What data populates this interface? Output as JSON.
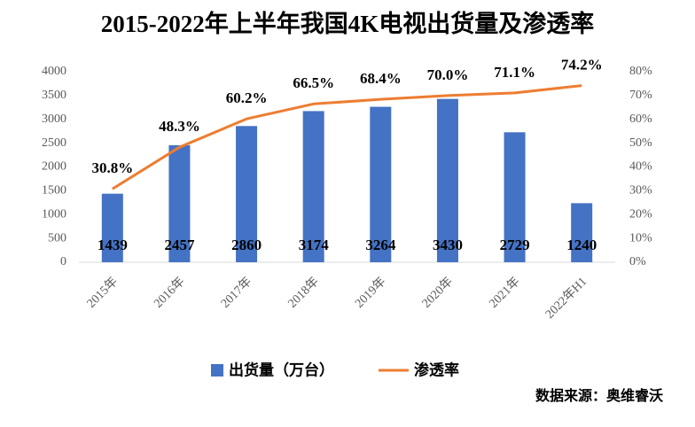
{
  "chart_data": {
    "type": "combo",
    "title": "2015-2022年上半年我国4K电视出货量及渗透率",
    "source": "数据来源：奥维睿沃",
    "categories": [
      "2015年",
      "2016年",
      "2017年",
      "2018年",
      "2019年",
      "2020年",
      "2021年",
      "2022年H1"
    ],
    "series": [
      {
        "name": "出货量（万台）",
        "type": "bar",
        "color": "#4472c4",
        "values": [
          1439,
          2457,
          2860,
          3174,
          3264,
          3430,
          2729,
          1240
        ]
      },
      {
        "name": "渗透率",
        "type": "line",
        "axis": "y2",
        "color": "#ed7d31",
        "values": [
          30.8,
          48.3,
          60.2,
          66.5,
          68.4,
          70.0,
          71.1,
          74.2
        ],
        "value_labels": [
          "30.8%",
          "48.3%",
          "60.2%",
          "66.5%",
          "68.4%",
          "70.0%",
          "71.1%",
          "74.2%"
        ]
      }
    ],
    "ylim": [
      0,
      4000
    ],
    "yticks": [
      0,
      500,
      1000,
      1500,
      2000,
      2500,
      3000,
      3500,
      4000
    ],
    "y2lim": [
      0,
      80
    ],
    "y2ticks": [
      {
        "value": 0,
        "label": "0%"
      },
      {
        "value": 10,
        "label": "10%"
      },
      {
        "value": 20,
        "label": "20%"
      },
      {
        "value": 30,
        "label": "30%"
      },
      {
        "value": 40,
        "label": "40%"
      },
      {
        "value": 50,
        "label": "50%"
      },
      {
        "value": 60,
        "label": "60%"
      },
      {
        "value": 70,
        "label": "70%"
      },
      {
        "value": 80,
        "label": "80%"
      }
    ],
    "grid": false,
    "legend": "bottom"
  }
}
